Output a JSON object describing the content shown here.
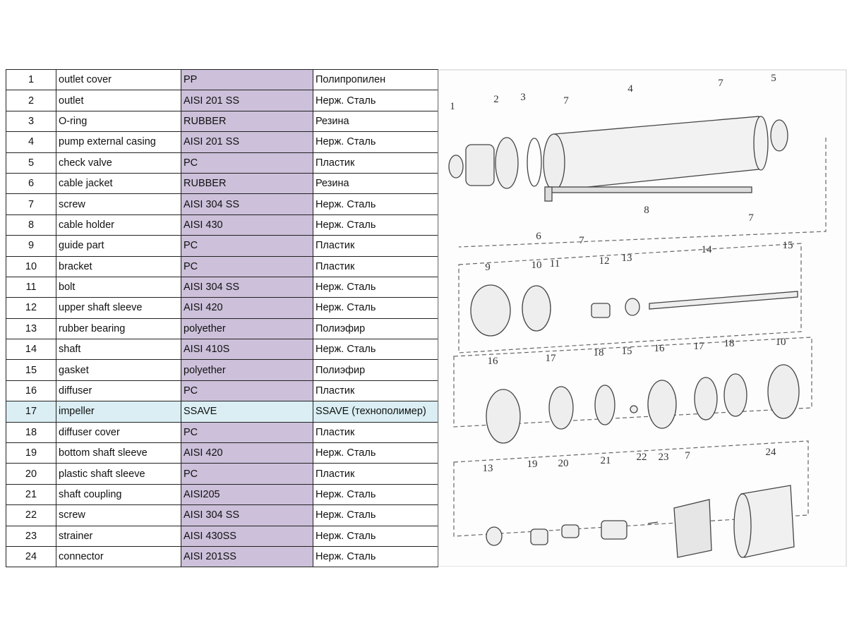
{
  "parts_table": {
    "rows": [
      {
        "no": "1",
        "name": "outlet cover",
        "material": "PP",
        "material_ru": "Полипропилен"
      },
      {
        "no": "2",
        "name": "outlet",
        "material": "AISI 201 SS",
        "material_ru": "Нерж. Сталь"
      },
      {
        "no": "3",
        "name": "O-ring",
        "material": "RUBBER",
        "material_ru": "Резина"
      },
      {
        "no": "4",
        "name": "pump external casing",
        "material": "AISI 201 SS",
        "material_ru": "Нерж. Сталь"
      },
      {
        "no": "5",
        "name": "check valve",
        "material": "PC",
        "material_ru": "Пластик"
      },
      {
        "no": "6",
        "name": "cable jacket",
        "material": "RUBBER",
        "material_ru": "Резина"
      },
      {
        "no": "7",
        "name": "screw",
        "material": "AISI 304 SS",
        "material_ru": "Нерж. Сталь"
      },
      {
        "no": "8",
        "name": "cable holder",
        "material": "AISI 430",
        "material_ru": "Нерж. Сталь"
      },
      {
        "no": "9",
        "name": "guide part",
        "material": "PC",
        "material_ru": "Пластик"
      },
      {
        "no": "10",
        "name": "bracket",
        "material": "PC",
        "material_ru": "Пластик"
      },
      {
        "no": "11",
        "name": "bolt",
        "material": "AISI 304 SS",
        "material_ru": "Нерж. Сталь"
      },
      {
        "no": "12",
        "name": "upper shaft sleeve",
        "material": "AISI 420",
        "material_ru": "Нерж. Сталь"
      },
      {
        "no": "13",
        "name": "rubber bearing",
        "material": "polyether",
        "material_ru": "Полиэфир"
      },
      {
        "no": "14",
        "name": "shaft",
        "material": "AISI 410S",
        "material_ru": "Нерж. Сталь"
      },
      {
        "no": "15",
        "name": "gasket",
        "material": "polyether",
        "material_ru": "Полиэфир"
      },
      {
        "no": "16",
        "name": "diffuser",
        "material": "PC",
        "material_ru": "Пластик"
      },
      {
        "no": "17",
        "name": "impeller",
        "material": "SSAVE",
        "material_ru": "SSAVE (технополимер)",
        "highlight": true
      },
      {
        "no": "18",
        "name": "diffuser cover",
        "material": "PC",
        "material_ru": "Пластик"
      },
      {
        "no": "19",
        "name": "bottom shaft sleeve",
        "material": "AISI 420",
        "material_ru": "Нерж. Сталь"
      },
      {
        "no": "20",
        "name": "plastic shaft sleeve",
        "material": "PC",
        "material_ru": "Пластик"
      },
      {
        "no": "21",
        "name": "shaft coupling",
        "material": "AISI205",
        "material_ru": "Нерж. Сталь"
      },
      {
        "no": "22",
        "name": "screw",
        "material": "AISI 304 SS",
        "material_ru": "Нерж. Сталь"
      },
      {
        "no": "23",
        "name": "strainer",
        "material": "AISI 430SS",
        "material_ru": "Нерж. Сталь"
      },
      {
        "no": "24",
        "name": "connector",
        "material": "AISI 201SS",
        "material_ru": "Нерж. Сталь"
      }
    ],
    "colors": {
      "material_column": "#ccc0da",
      "highlight_row": "#daeef3"
    }
  },
  "diagram": {
    "callouts": [
      "1",
      "2",
      "3",
      "4",
      "5",
      "7",
      "7",
      "8",
      "6",
      "7",
      "7",
      "9",
      "10",
      "11",
      "12",
      "13",
      "14",
      "15",
      "16",
      "17",
      "18",
      "15",
      "16",
      "17",
      "18",
      "10",
      "13",
      "19",
      "20",
      "21",
      "22",
      "23",
      "7",
      "24"
    ]
  }
}
